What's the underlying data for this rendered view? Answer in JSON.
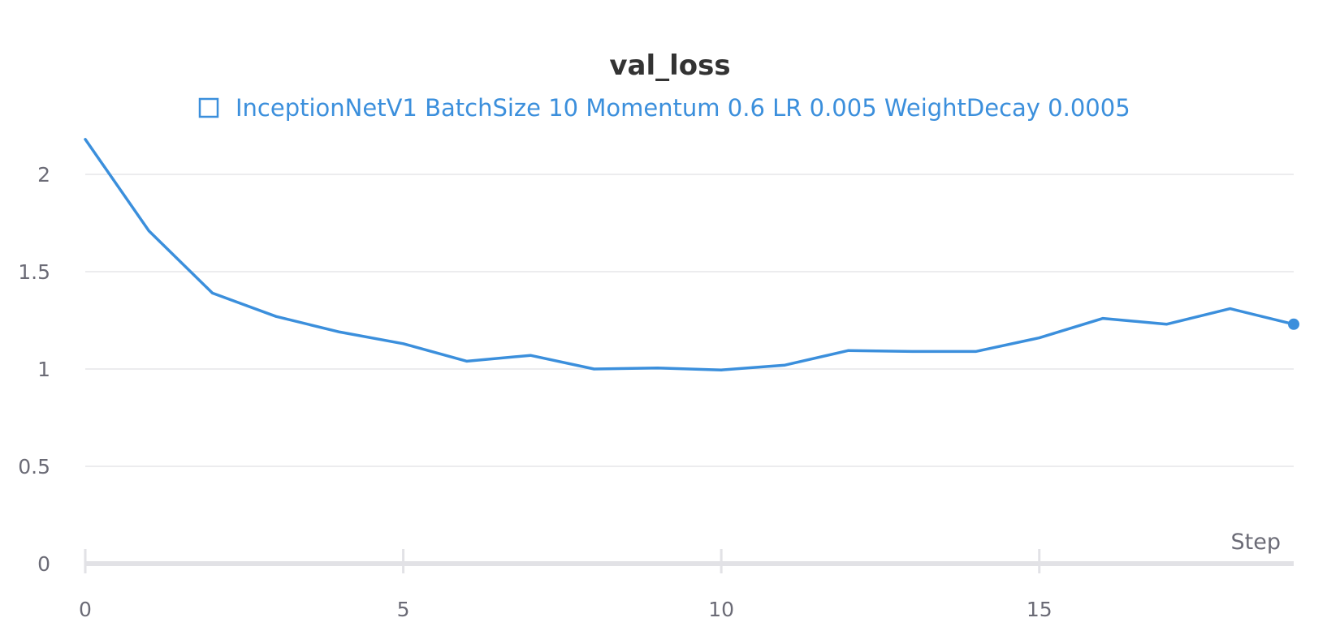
{
  "chart_data": {
    "type": "line",
    "title": "val_loss",
    "xlabel": "Step",
    "ylabel": "",
    "xlim": [
      0,
      19
    ],
    "ylim": [
      0,
      2.2
    ],
    "xticks": [
      0,
      5,
      10,
      15
    ],
    "yticks": [
      0,
      0.5,
      1,
      1.5,
      2
    ],
    "x_tick_labels": [
      "0",
      "5",
      "10",
      "15"
    ],
    "y_tick_labels": [
      "0",
      "0.5",
      "1",
      "1.5",
      "2"
    ],
    "grid": true,
    "legend_position": "top-center",
    "series": [
      {
        "name": "InceptionNetV1 BatchSize 10 Momentum 0.6 LR 0.005 WeightDecay 0.0005",
        "color": "#3b8fdc",
        "x": [
          0,
          1,
          2,
          3,
          4,
          5,
          6,
          7,
          8,
          9,
          10,
          11,
          12,
          13,
          14,
          15,
          16,
          17,
          18,
          19
        ],
        "y": [
          2.18,
          1.71,
          1.39,
          1.27,
          1.19,
          1.13,
          1.04,
          1.07,
          1.0,
          1.005,
          0.995,
          1.02,
          1.095,
          1.09,
          1.09,
          1.16,
          1.26,
          1.23,
          1.31,
          1.23
        ]
      }
    ]
  }
}
